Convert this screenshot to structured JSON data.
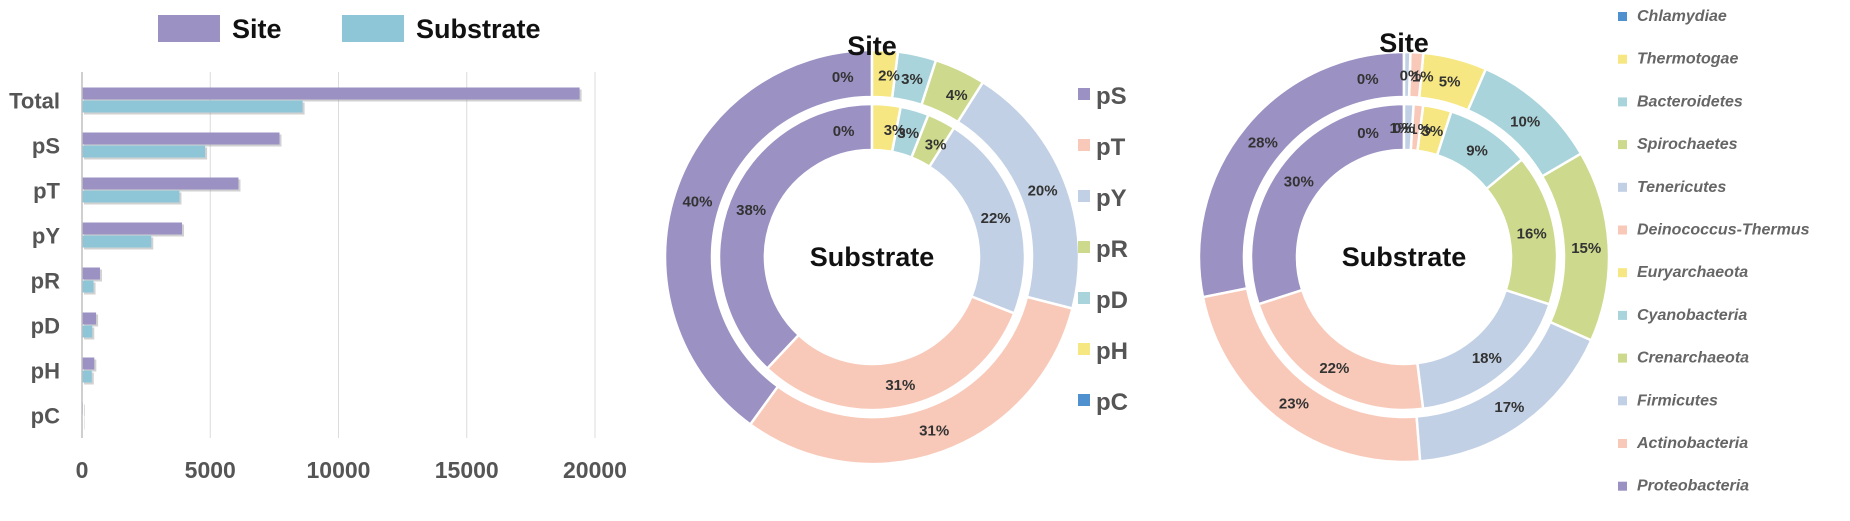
{
  "chart_data": [
    {
      "type": "bar",
      "orientation": "horizontal",
      "categories": [
        "Total",
        "pS",
        "pT",
        "pY",
        "pR",
        "pD",
        "pH",
        "pC"
      ],
      "series": [
        {
          "name": "Site",
          "color": "#9b91c3",
          "values": [
            19400,
            7700,
            6100,
            3900,
            700,
            550,
            480,
            30
          ]
        },
        {
          "name": "Substrate",
          "color": "#8ec6d8",
          "values": [
            8600,
            4800,
            3800,
            2700,
            450,
            400,
            380,
            20
          ]
        }
      ],
      "xlim": [
        0,
        20000
      ],
      "xticks": [
        "0",
        "5000",
        "10000",
        "15000",
        "20000"
      ],
      "grid": true,
      "legend": "top"
    },
    {
      "type": "pie",
      "subtype": "double-donut",
      "outer_label": "Site",
      "inner_label": "Substrate",
      "categories": [
        "pS",
        "pT",
        "pY",
        "pR",
        "pD",
        "pH",
        "pC"
      ],
      "colors": [
        "#9b91c3",
        "#f8c9b9",
        "#c1d0e4",
        "#cdd98c",
        "#a9d4db",
        "#f6e782",
        "#4f90cf"
      ],
      "outer": {
        "values": [
          40,
          31,
          20,
          4,
          3,
          2,
          0
        ],
        "labels": [
          "40%",
          "31%",
          "20%",
          "4%",
          "3%",
          "2%",
          "0%"
        ]
      },
      "inner": {
        "values": [
          38,
          31,
          22,
          3,
          3,
          3,
          0
        ],
        "labels": [
          "38%",
          "31%",
          "22%",
          "3%",
          "3%",
          "3%",
          "0%"
        ]
      },
      "legend": "right"
    },
    {
      "type": "pie",
      "subtype": "double-donut",
      "outer_label": "Site",
      "inner_label": "Substrate",
      "categories": [
        "Proteobacteria",
        "Actinobacteria",
        "Firmicutes",
        "Crenarchaeota",
        "Cyanobacteria",
        "Euryarchaeota",
        "Deinococcus-Thermus",
        "Tenericutes",
        "Spirochaetes",
        "Bacteroidetes",
        "Thermotogae",
        "Chlamydiae"
      ],
      "colors": [
        "#9b91c3",
        "#f8c9b9",
        "#c1d0e4",
        "#cdd98c",
        "#a9d4db",
        "#f6e782",
        "#f8c9b9",
        "#c1d0e4",
        "#cdd98c",
        "#a9d4db",
        "#f6e782",
        "#4f90cf"
      ],
      "outer": {
        "values": [
          28,
          23,
          17,
          15,
          10,
          5,
          1,
          0.5,
          0,
          0,
          0,
          0
        ],
        "labels": [
          "28%",
          "23%",
          "17%",
          "15%",
          "10%",
          "5%",
          "1%",
          "0%",
          "",
          "",
          "",
          "0%"
        ]
      },
      "inner": {
        "values": [
          30,
          22,
          18,
          16,
          9,
          3,
          1,
          1,
          0,
          0,
          0,
          0
        ],
        "labels": [
          "30%",
          "22%",
          "18%",
          "16%",
          "9%",
          "3%",
          "1%",
          "1%",
          "",
          "",
          "0%",
          "0%"
        ]
      },
      "legend": "right"
    }
  ]
}
